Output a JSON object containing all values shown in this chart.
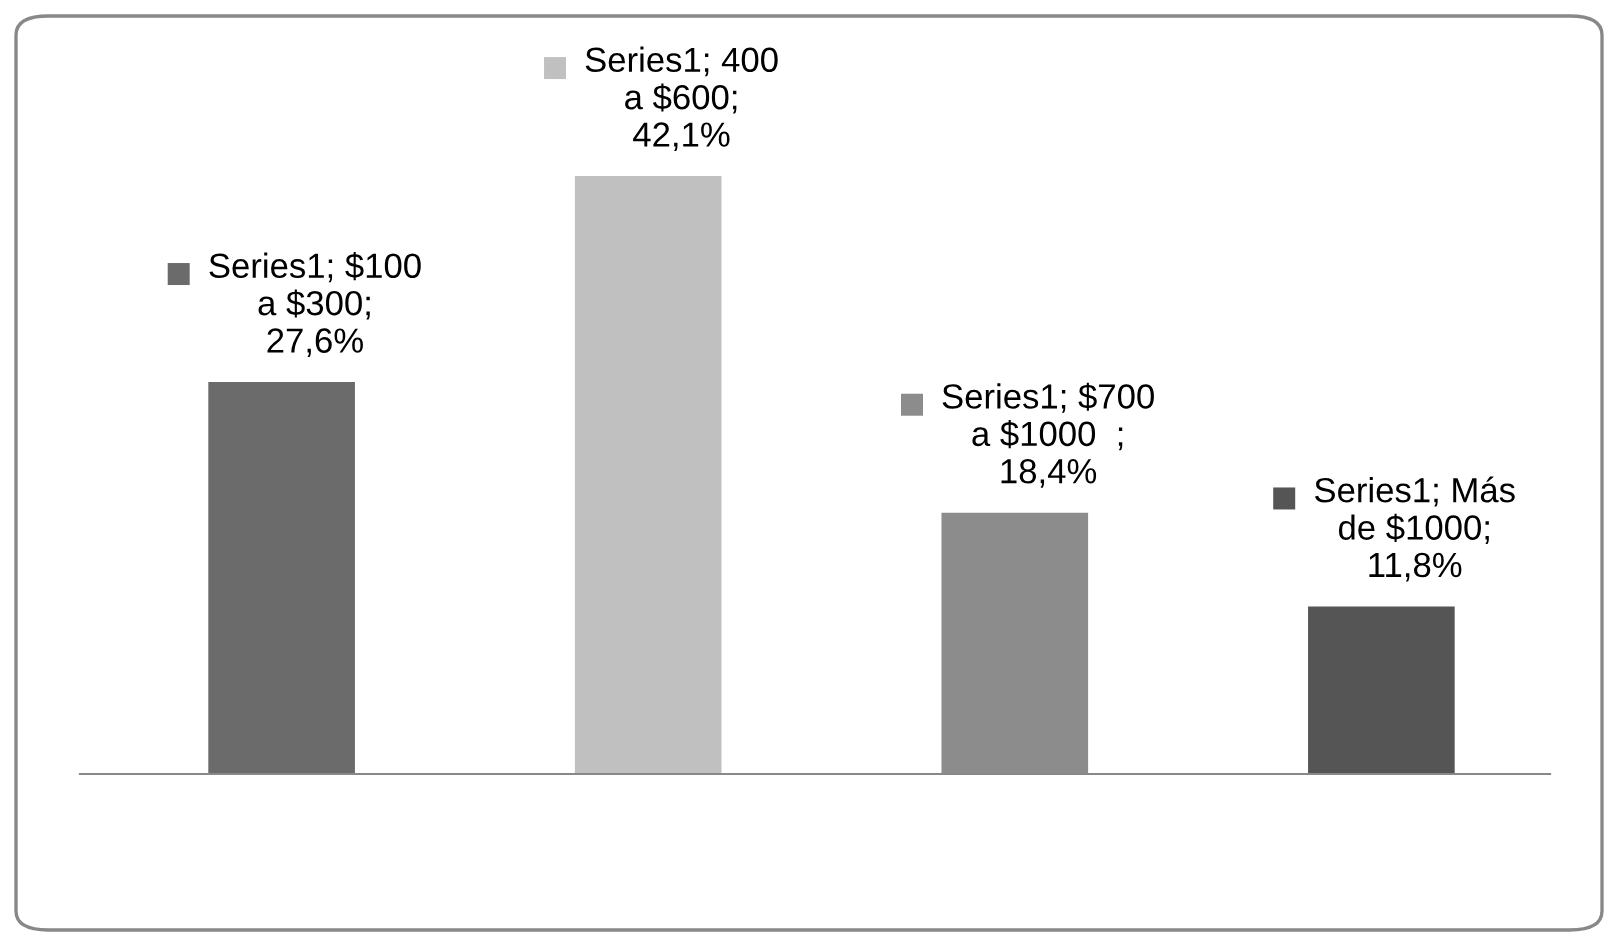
{
  "chart_data": {
    "type": "bar",
    "categories": [
      null,
      null,
      null,
      null
    ],
    "values": [
      27.6,
      42.1,
      18.4,
      11.8
    ],
    "colors": [
      "#6b6b6b",
      "#c0c0c0",
      "#8c8c8c",
      "#555555"
    ],
    "value_labels": [
      "Series1; $100\na $300;\n27,6%",
      "Series1; 400\na $600;\n42,1%",
      "Series1; $700\na $1000  ;\n18,4%",
      "Series1; Más\nde $1000;\n11,8%"
    ],
    "legend": false
  }
}
